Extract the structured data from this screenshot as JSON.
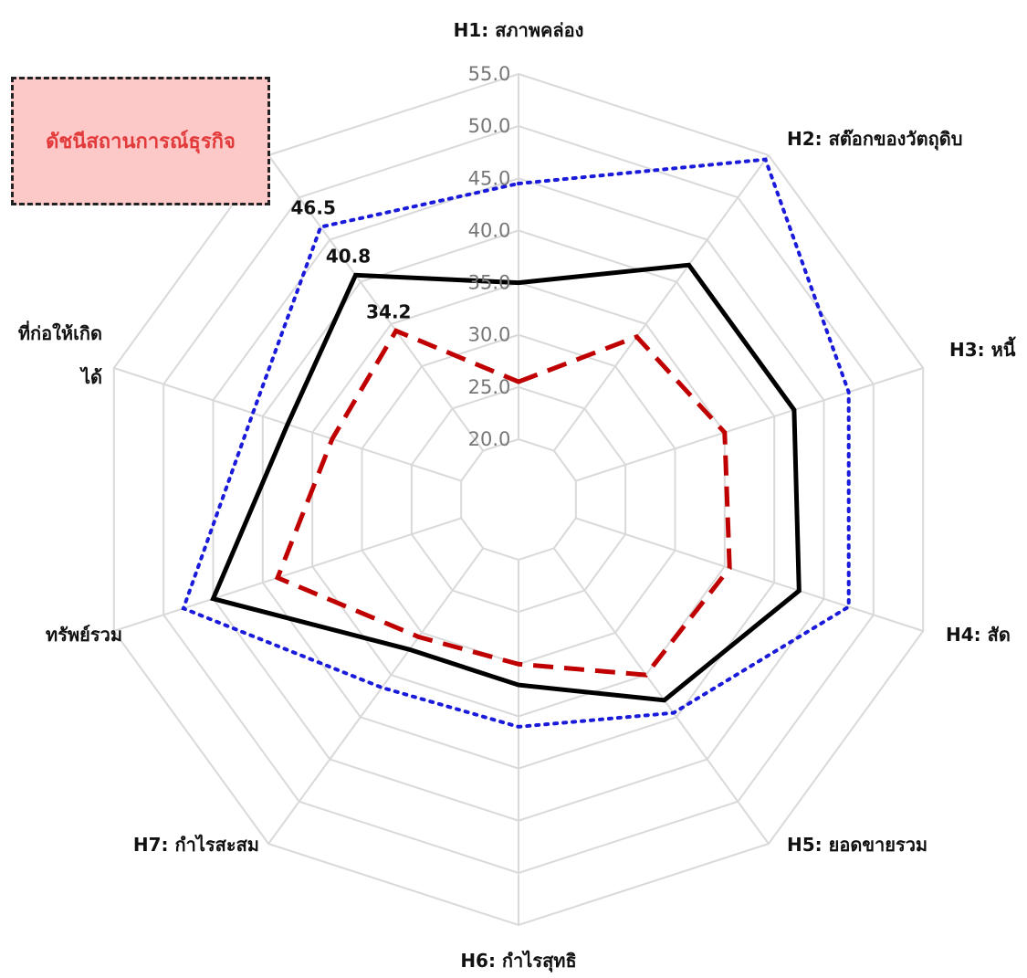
{
  "chart_data": {
    "type": "radar",
    "categories": [
      "H1: สภาพคล่อง",
      "H2: สต๊อกของวัตถุดิบ",
      "H3: หนี้",
      "H4: สัด",
      "H5: ยอดขายรวม",
      "H6: กำไรสุทธิ",
      "H7: กำไรสะสม",
      "ทรัพย์รวม",
      "ที่ก่อให้เกิด",
      "ได้"
    ],
    "rlim": [
      20,
      55
    ],
    "ticks": [
      "20.0",
      "25.0",
      "30.0",
      "35.0",
      "40.0",
      "45.0",
      "50.0",
      "55.0"
    ],
    "grid": true,
    "series": [
      {
        "style": "dotted",
        "color": "#1a1adb",
        "values": [
          44.5,
          54.5,
          47.5,
          47.5,
          39.5,
          36.0,
          36.5,
          48.0,
          41.0,
          46.5
        ]
      },
      {
        "style": "solid",
        "color": "#000000",
        "values": [
          35.0,
          42.0,
          42.0,
          42.5,
          38.0,
          32.0,
          32.0,
          45.0,
          37.5,
          40.8
        ]
      },
      {
        "style": "dashed",
        "color": "#c00000",
        "values": [
          25.5,
          33.5,
          35.0,
          35.5,
          35.0,
          30.0,
          30.5,
          38.5,
          33.0,
          34.2
        ]
      }
    ],
    "data_labels": [
      "46.5",
      "40.8",
      "34.2"
    ]
  },
  "legend": {
    "label": "ดัชนีสถานการณ์ธุรกิจ"
  }
}
